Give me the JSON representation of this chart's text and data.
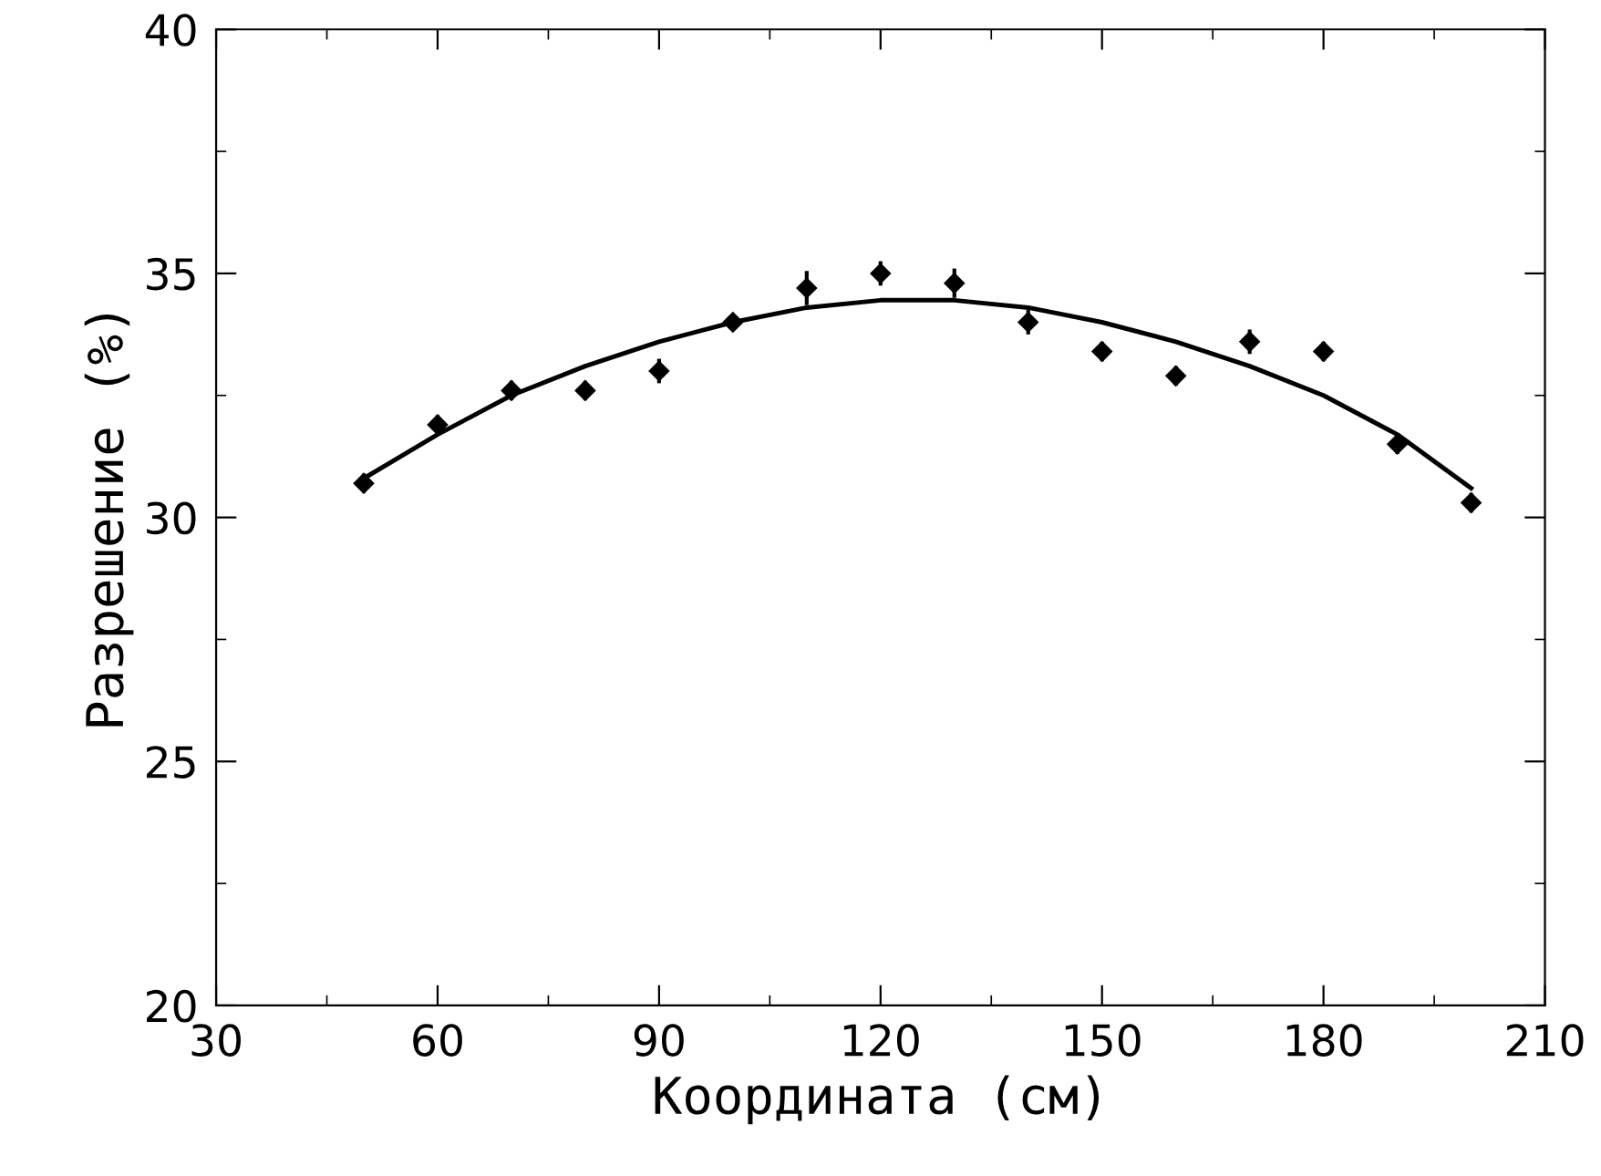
{
  "chart_data": {
    "type": "scatter",
    "xlabel": "Координата (см)",
    "ylabel": "Разрешение (%)",
    "xlim": [
      30,
      210
    ],
    "xticks": [
      30,
      60,
      90,
      120,
      150,
      180,
      210
    ],
    "ylim": [
      20,
      40
    ],
    "yticks": [
      20,
      25,
      30,
      35,
      40
    ],
    "grid": false,
    "series": [
      {
        "marker": "diamond",
        "color": "#000000",
        "x": [
          50,
          60,
          70,
          80,
          90,
          100,
          110,
          120,
          130,
          140,
          150,
          160,
          170,
          180,
          190,
          200
        ],
        "values": [
          30.7,
          31.9,
          32.6,
          32.6,
          33.0,
          34.0,
          34.7,
          35.0,
          34.8,
          34.0,
          33.4,
          32.9,
          33.6,
          33.4,
          31.5,
          30.3
        ],
        "errors": [
          0.2,
          0.2,
          0.2,
          0.2,
          0.25,
          0.15,
          0.35,
          0.25,
          0.3,
          0.25,
          0.2,
          0.2,
          0.25,
          0.2,
          0.2,
          0.2
        ]
      },
      {
        "type": "line",
        "color": "#000000",
        "line_style": "solid",
        "x": [
          50,
          60,
          70,
          80,
          90,
          100,
          110,
          120,
          130,
          140,
          150,
          160,
          170,
          180,
          190,
          200
        ],
        "values": [
          30.8,
          31.7,
          32.5,
          33.1,
          33.6,
          34.0,
          34.3,
          34.45,
          34.45,
          34.3,
          34.0,
          33.6,
          33.1,
          32.5,
          31.7,
          30.6
        ]
      }
    ]
  }
}
